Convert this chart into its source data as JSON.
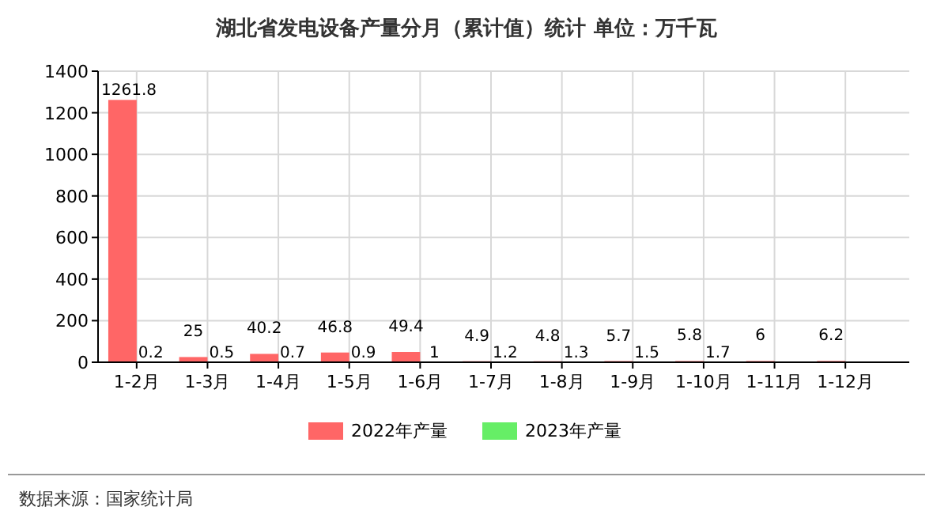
{
  "chart_data": {
    "type": "bar",
    "title": "湖北省发电设备产量分月（累计值）统计 单位：万千瓦",
    "categories": [
      "1-2月",
      "1-3月",
      "1-4月",
      "1-5月",
      "1-6月",
      "1-7月",
      "1-8月",
      "1-9月",
      "1-10月",
      "1-11月",
      "1-12月"
    ],
    "series": [
      {
        "name": "2022年产量",
        "color": "#ff6666",
        "values": [
          1261.8,
          25,
          40.2,
          46.8,
          49.4,
          4.9,
          4.8,
          5.7,
          5.8,
          6,
          6.2
        ]
      },
      {
        "name": "2023年产量",
        "color": "#66ee66",
        "values": [
          0.2,
          0.5,
          0.7,
          0.9,
          1,
          1.2,
          1.3,
          1.5,
          1.7,
          null,
          null
        ]
      }
    ],
    "ylim": [
      0,
      1400
    ],
    "yticks": [
      0,
      200,
      400,
      600,
      800,
      1000,
      1200,
      1400
    ],
    "grid": true,
    "legend": "bottom",
    "data_labels": true,
    "annotations": [
      "数据来源：国家统计局"
    ]
  }
}
